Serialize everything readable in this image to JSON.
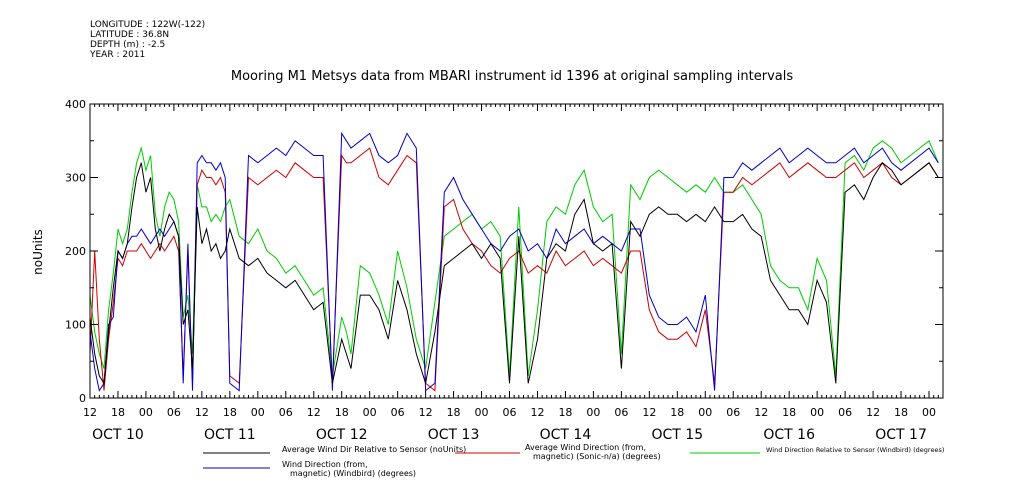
{
  "meta": {
    "longitude": "LONGITUDE : 122W(-122)",
    "latitude": "LATITUDE : 36.8N",
    "depth": "DEPTH (m) : -2.5",
    "year": "YEAR : 2011"
  },
  "chart_data": {
    "type": "line",
    "title": "Mooring M1 Metsys data from MBARI instrument id 1396 at original sampling intervals",
    "ylabel": "noUnits",
    "xlabel": "",
    "ylim": [
      0,
      400
    ],
    "y_ticks": [
      0,
      100,
      200,
      300,
      400
    ],
    "xlim": [
      12,
      195
    ],
    "x_unit": "hours since OCT 10 00:00",
    "x_ticks": [
      {
        "x": 12,
        "label": "12"
      },
      {
        "x": 18,
        "label": "18"
      },
      {
        "x": 24,
        "label": "00"
      },
      {
        "x": 30,
        "label": "06"
      },
      {
        "x": 36,
        "label": "12"
      },
      {
        "x": 42,
        "label": "18"
      },
      {
        "x": 48,
        "label": "00"
      },
      {
        "x": 54,
        "label": "06"
      },
      {
        "x": 60,
        "label": "12"
      },
      {
        "x": 66,
        "label": "18"
      },
      {
        "x": 72,
        "label": "00"
      },
      {
        "x": 78,
        "label": "06"
      },
      {
        "x": 84,
        "label": "12"
      },
      {
        "x": 90,
        "label": "18"
      },
      {
        "x": 96,
        "label": "00"
      },
      {
        "x": 102,
        "label": "06"
      },
      {
        "x": 108,
        "label": "12"
      },
      {
        "x": 114,
        "label": "18"
      },
      {
        "x": 120,
        "label": "00"
      },
      {
        "x": 126,
        "label": "06"
      },
      {
        "x": 132,
        "label": "12"
      },
      {
        "x": 138,
        "label": "18"
      },
      {
        "x": 144,
        "label": "00"
      },
      {
        "x": 150,
        "label": "06"
      },
      {
        "x": 156,
        "label": "12"
      },
      {
        "x": 162,
        "label": "18"
      },
      {
        "x": 168,
        "label": "00"
      },
      {
        "x": 174,
        "label": "06"
      },
      {
        "x": 180,
        "label": "12"
      },
      {
        "x": 186,
        "label": "18"
      },
      {
        "x": 192,
        "label": "00"
      }
    ],
    "day_labels": [
      {
        "x": 18,
        "label": "OCT 10"
      },
      {
        "x": 42,
        "label": "OCT 11"
      },
      {
        "x": 66,
        "label": "OCT 12"
      },
      {
        "x": 90,
        "label": "OCT 13"
      },
      {
        "x": 114,
        "label": "OCT 14"
      },
      {
        "x": 138,
        "label": "OCT 15"
      },
      {
        "x": 162,
        "label": "OCT 16"
      },
      {
        "x": 186,
        "label": "OCT 17"
      }
    ],
    "grid": false,
    "legend_placement": "bottom",
    "series": [
      {
        "name": "Average Wind Dir Relative to Sensor (noUnits)",
        "color": "#000000",
        "x": [
          12,
          13,
          14,
          15,
          16,
          17,
          18,
          19,
          20,
          21,
          22,
          23,
          24,
          25,
          26,
          27,
          28,
          29,
          30,
          31,
          32,
          33,
          34,
          35,
          36,
          37,
          38,
          39,
          40,
          41,
          42,
          44,
          46,
          48,
          50,
          52,
          54,
          56,
          58,
          60,
          62,
          64,
          66,
          67,
          68,
          70,
          72,
          74,
          76,
          78,
          80,
          82,
          84,
          86,
          88,
          90,
          92,
          94,
          96,
          98,
          100,
          102,
          104,
          106,
          108,
          110,
          112,
          114,
          116,
          118,
          120,
          122,
          124,
          126,
          128,
          130,
          132,
          134,
          136,
          138,
          140,
          142,
          144,
          146,
          148,
          150,
          152,
          154,
          156,
          158,
          160,
          162,
          164,
          166,
          168,
          170,
          172,
          174,
          176,
          178,
          180,
          182,
          184,
          186,
          188,
          190,
          192,
          194
        ],
        "y": [
          110,
          60,
          30,
          20,
          90,
          150,
          200,
          190,
          210,
          260,
          300,
          320,
          280,
          300,
          230,
          200,
          230,
          250,
          240,
          220,
          100,
          120,
          40,
          260,
          210,
          230,
          200,
          210,
          190,
          200,
          230,
          190,
          180,
          190,
          170,
          160,
          150,
          160,
          140,
          120,
          130,
          20,
          80,
          60,
          40,
          140,
          140,
          120,
          80,
          160,
          120,
          60,
          20,
          90,
          180,
          190,
          200,
          210,
          190,
          210,
          190,
          20,
          220,
          20,
          80,
          190,
          210,
          200,
          250,
          270,
          210,
          200,
          210,
          40,
          240,
          220,
          250,
          260,
          250,
          250,
          240,
          250,
          240,
          260,
          240,
          240,
          250,
          230,
          220,
          160,
          140,
          120,
          120,
          100,
          160,
          130,
          20,
          280,
          290,
          270,
          300,
          320,
          310,
          290,
          300,
          310,
          320,
          300
        ]
      },
      {
        "name": "Average Wind Direction (from, magnetic) (Sonic-n/a) (degrees)",
        "color": "#d10000",
        "x": [
          12,
          13,
          14,
          15,
          16,
          17,
          18,
          19,
          20,
          21,
          22,
          23,
          24,
          25,
          26,
          27,
          28,
          29,
          30,
          31,
          32,
          33,
          34,
          35,
          36,
          37,
          38,
          39,
          40,
          41,
          42,
          44,
          46,
          48,
          50,
          52,
          54,
          56,
          58,
          60,
          62,
          64,
          66,
          67,
          68,
          70,
          72,
          74,
          76,
          78,
          80,
          82,
          84,
          86,
          88,
          90,
          92,
          94,
          96,
          98,
          100,
          102,
          104,
          106,
          108,
          110,
          112,
          114,
          116,
          118,
          120,
          122,
          124,
          126,
          128,
          130,
          132,
          134,
          136,
          138,
          140,
          142,
          144,
          146,
          148,
          150,
          152,
          154,
          156,
          158,
          160,
          162,
          164,
          166,
          168,
          170,
          172,
          174,
          176,
          178,
          180,
          182,
          184,
          186,
          188,
          190,
          192,
          194
        ],
        "y": [
          60,
          200,
          80,
          10,
          80,
          130,
          190,
          180,
          200,
          200,
          200,
          210,
          200,
          190,
          200,
          210,
          200,
          210,
          220,
          200,
          30,
          200,
          20,
          290,
          310,
          300,
          300,
          290,
          300,
          280,
          30,
          20,
          300,
          290,
          300,
          310,
          300,
          320,
          310,
          300,
          300,
          20,
          330,
          320,
          320,
          330,
          340,
          300,
          290,
          310,
          330,
          320,
          20,
          10,
          260,
          270,
          230,
          210,
          200,
          180,
          170,
          190,
          200,
          170,
          180,
          170,
          200,
          180,
          190,
          200,
          180,
          190,
          180,
          170,
          200,
          200,
          120,
          90,
          80,
          80,
          90,
          70,
          120,
          20,
          280,
          280,
          300,
          290,
          300,
          310,
          320,
          300,
          310,
          320,
          310,
          300,
          300,
          310,
          320,
          300,
          310,
          320,
          300,
          290,
          300,
          310,
          320,
          300
        ]
      },
      {
        "name": "Wind Direction Relative to Sensor (Windbird) (degrees)",
        "color": "#00cc00",
        "x": [
          12,
          13,
          14,
          15,
          16,
          17,
          18,
          19,
          20,
          21,
          22,
          23,
          24,
          25,
          26,
          27,
          28,
          29,
          30,
          31,
          32,
          33,
          34,
          35,
          36,
          37,
          38,
          39,
          40,
          41,
          42,
          44,
          46,
          48,
          50,
          52,
          54,
          56,
          58,
          60,
          62,
          64,
          66,
          67,
          68,
          70,
          72,
          74,
          76,
          78,
          80,
          82,
          84,
          86,
          88,
          90,
          92,
          94,
          96,
          98,
          100,
          102,
          104,
          106,
          108,
          110,
          112,
          114,
          116,
          118,
          120,
          122,
          124,
          126,
          128,
          130,
          132,
          134,
          136,
          138,
          140,
          142,
          144,
          146,
          148,
          150,
          152,
          154,
          156,
          158,
          160,
          162,
          164,
          166,
          168,
          170,
          172,
          174,
          176,
          178,
          180,
          182,
          184,
          186,
          188,
          190,
          192,
          194
        ],
        "y": [
          140,
          90,
          60,
          40,
          120,
          170,
          230,
          210,
          230,
          280,
          320,
          340,
          310,
          330,
          250,
          220,
          260,
          280,
          270,
          240,
          110,
          140,
          60,
          290,
          260,
          260,
          240,
          250,
          240,
          260,
          270,
          220,
          210,
          230,
          200,
          190,
          170,
          180,
          160,
          140,
          150,
          30,
          110,
          90,
          60,
          180,
          170,
          140,
          100,
          200,
          150,
          80,
          40,
          130,
          220,
          230,
          240,
          250,
          230,
          240,
          220,
          30,
          260,
          30,
          120,
          240,
          260,
          250,
          290,
          310,
          260,
          240,
          250,
          60,
          290,
          270,
          300,
          310,
          300,
          290,
          280,
          290,
          280,
          300,
          280,
          280,
          290,
          270,
          250,
          180,
          160,
          150,
          150,
          120,
          190,
          160,
          30,
          320,
          330,
          310,
          340,
          350,
          340,
          320,
          330,
          340,
          350,
          320
        ]
      },
      {
        "name": "Wind Direction (from, magnetic) (Windbird) (degrees)",
        "color": "#0000cc",
        "x": [
          12,
          13,
          14,
          15,
          16,
          17,
          18,
          19,
          20,
          21,
          22,
          23,
          24,
          25,
          26,
          27,
          28,
          29,
          30,
          31,
          32,
          33,
          34,
          35,
          36,
          37,
          38,
          39,
          40,
          41,
          42,
          44,
          46,
          48,
          50,
          52,
          54,
          56,
          58,
          60,
          62,
          64,
          66,
          67,
          68,
          70,
          72,
          74,
          76,
          78,
          80,
          82,
          84,
          86,
          88,
          90,
          92,
          94,
          96,
          98,
          100,
          102,
          104,
          106,
          108,
          110,
          112,
          114,
          116,
          118,
          120,
          122,
          124,
          126,
          128,
          130,
          132,
          134,
          136,
          138,
          140,
          142,
          144,
          146,
          148,
          150,
          152,
          154,
          156,
          158,
          160,
          162,
          164,
          166,
          168,
          170,
          172,
          174,
          176,
          178,
          180,
          182,
          184,
          186,
          188,
          190,
          192,
          194
        ],
        "y": [
          90,
          40,
          10,
          20,
          100,
          110,
          200,
          190,
          210,
          220,
          220,
          230,
          220,
          210,
          220,
          230,
          220,
          230,
          240,
          220,
          20,
          210,
          10,
          320,
          330,
          320,
          320,
          310,
          320,
          300,
          20,
          10,
          330,
          320,
          330,
          340,
          330,
          350,
          340,
          330,
          330,
          10,
          360,
          350,
          340,
          350,
          360,
          330,
          320,
          330,
          360,
          340,
          10,
          20,
          280,
          300,
          270,
          250,
          230,
          210,
          200,
          220,
          230,
          200,
          210,
          190,
          230,
          210,
          220,
          230,
          210,
          220,
          210,
          200,
          230,
          230,
          140,
          110,
          100,
          100,
          110,
          90,
          140,
          10,
          300,
          300,
          320,
          310,
          320,
          330,
          340,
          320,
          330,
          340,
          330,
          320,
          320,
          330,
          340,
          320,
          330,
          340,
          320,
          310,
          320,
          330,
          340,
          320
        ]
      }
    ]
  }
}
